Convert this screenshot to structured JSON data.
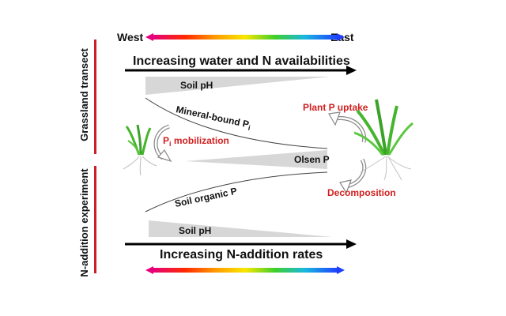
{
  "section_labels": {
    "top": "Grassland transect",
    "bottom": "N-addition experiment"
  },
  "top_gradient": {
    "left_label": "West",
    "right_label": "East"
  },
  "top_arrow_label": "Increasing water and N availabilities",
  "top_wedge_label": "Soil pH",
  "mineral_bound_label": "Mineral-bound P",
  "mineral_bound_subscript": "i",
  "pi_mobilization_label": "P",
  "pi_mobilization_subscript": "i",
  "pi_mobilization_rest": " mobilization",
  "center_wedge_label": "Olsen P",
  "plant_uptake_label": "Plant P uptake",
  "decomposition_label": "Decomposition",
  "soil_organic_label": "Soil organic P",
  "bottom_wedge_label": "Soil pH",
  "bottom_arrow_label": "Increasing N-addition rates",
  "colors": {
    "bracket": "#cc1f2a",
    "accent_text": "#d21f1f",
    "wedge": "#d7d7d7",
    "plant_green": "#46b52e",
    "rainbow": [
      "#e5007e",
      "#ff2a00",
      "#ff9a00",
      "#f8e700",
      "#3fcf2b",
      "#19b7e0",
      "#1f3fff"
    ]
  },
  "icons": [
    "small-grass-icon",
    "large-grass-icon",
    "curved-arrow-icon"
  ]
}
